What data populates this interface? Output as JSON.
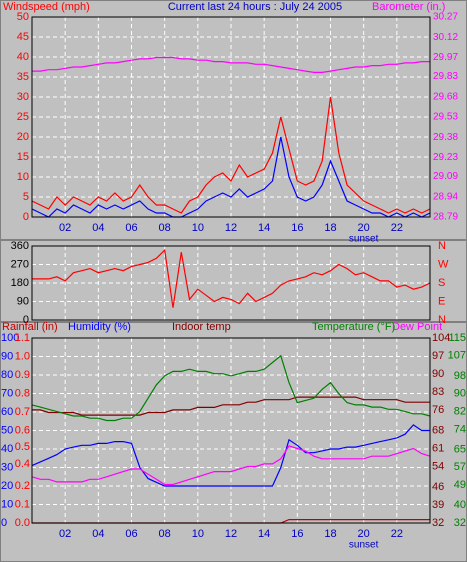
{
  "chart_data": [
    {
      "type": "line",
      "title": "Current last 24 hours : July 24 2005",
      "ylabel": "Windspeed (mph)",
      "y2label": "Barometer (in.)",
      "x": [
        0,
        0.5,
        1,
        1.5,
        2,
        2.5,
        3,
        3.5,
        4,
        4.5,
        5,
        5.5,
        6,
        6.5,
        7,
        7.5,
        8,
        8.5,
        9,
        9.5,
        10,
        10.5,
        11,
        11.5,
        12,
        12.5,
        13,
        13.5,
        14,
        14.5,
        15,
        15.5,
        16,
        16.5,
        17,
        17.5,
        18,
        18.5,
        19,
        19.5,
        20,
        20.5,
        21,
        21.5,
        22,
        22.5,
        23,
        23.5,
        24
      ],
      "xlim": [
        0,
        24
      ],
      "xticks": [
        {
          "value": 2,
          "label": "02"
        },
        {
          "value": 4,
          "label": "04"
        },
        {
          "value": 6,
          "label": "06"
        },
        {
          "value": 8,
          "label": "08"
        },
        {
          "value": 10,
          "label": "10"
        },
        {
          "value": 12,
          "label": "12"
        },
        {
          "value": 14,
          "label": "14"
        },
        {
          "value": 16,
          "label": "16"
        },
        {
          "value": 18,
          "label": "18"
        },
        {
          "value": 20,
          "label": "20"
        },
        {
          "value": 22,
          "label": "22"
        }
      ],
      "ylim": [
        0,
        50
      ],
      "yticks": [
        0,
        5,
        10,
        15,
        20,
        25,
        30,
        35,
        40,
        45,
        50
      ],
      "y2lim": [
        28.79,
        30.27
      ],
      "y2ticks": [
        28.79,
        28.94,
        29.09,
        29.23,
        29.38,
        29.53,
        29.68,
        29.83,
        29.97,
        30.12,
        30.27
      ],
      "grid": true,
      "annotations": [
        {
          "text": "sunset",
          "x": 20
        }
      ],
      "series": [
        {
          "color": "#ff0000",
          "values": [
            4,
            3,
            2,
            5,
            3,
            5,
            4,
            3,
            5,
            4,
            6,
            4,
            5,
            8,
            5,
            3,
            3,
            2,
            1,
            4,
            5,
            8,
            10,
            11,
            9,
            13,
            10,
            11,
            12,
            16,
            25,
            17,
            9,
            8,
            9,
            14,
            30,
            16,
            8,
            6,
            4,
            3,
            2,
            1,
            2,
            1,
            2,
            1,
            2
          ]
        },
        {
          "color": "#0000ff",
          "values": [
            2,
            1,
            0,
            2,
            1,
            3,
            2,
            1,
            3,
            2,
            3,
            2,
            3,
            4,
            2,
            1,
            1,
            0,
            0,
            1,
            2,
            4,
            5,
            6,
            5,
            7,
            5,
            6,
            7,
            9,
            20,
            10,
            5,
            4,
            5,
            8,
            14,
            9,
            4,
            3,
            2,
            1,
            1,
            0,
            1,
            0,
            1,
            0,
            1
          ]
        },
        {
          "color": "#ff00ff",
          "axis": "y2",
          "values": [
            29.87,
            29.87,
            29.88,
            29.88,
            29.89,
            29.9,
            29.9,
            29.91,
            29.92,
            29.93,
            29.93,
            29.94,
            29.95,
            29.96,
            29.96,
            29.97,
            29.97,
            29.97,
            29.96,
            29.96,
            29.95,
            29.95,
            29.94,
            29.94,
            29.93,
            29.93,
            29.93,
            29.92,
            29.92,
            29.91,
            29.9,
            29.89,
            29.88,
            29.87,
            29.86,
            29.86,
            29.87,
            29.88,
            29.89,
            29.9,
            29.9,
            29.91,
            29.91,
            29.92,
            29.92,
            29.93,
            29.93,
            29.94,
            29.94
          ]
        }
      ]
    },
    {
      "type": "line",
      "x": [
        0,
        0.5,
        1,
        1.5,
        2,
        2.5,
        3,
        3.5,
        4,
        4.5,
        5,
        5.5,
        6,
        6.5,
        7,
        7.5,
        8,
        8.5,
        9,
        9.5,
        10,
        10.5,
        11,
        11.5,
        12,
        12.5,
        13,
        13.5,
        14,
        14.5,
        15,
        15.5,
        16,
        16.5,
        17,
        17.5,
        18,
        18.5,
        19,
        19.5,
        20,
        20.5,
        21,
        21.5,
        22,
        22.5,
        23,
        23.5,
        24
      ],
      "xlim": [
        0,
        24
      ],
      "ylim": [
        0,
        360
      ],
      "yticks": [
        0,
        90,
        180,
        270,
        360
      ],
      "y2lim": [
        0,
        360
      ],
      "y2ticks": [
        {
          "value": 0,
          "label": "N"
        },
        {
          "value": 90,
          "label": "E"
        },
        {
          "value": 180,
          "label": "S"
        },
        {
          "value": 270,
          "label": "W"
        },
        {
          "value": 360,
          "label": "N"
        }
      ],
      "grid": true,
      "series": [
        {
          "color": "#ff0000",
          "values": [
            200,
            200,
            200,
            210,
            190,
            230,
            240,
            250,
            230,
            240,
            250,
            240,
            260,
            270,
            280,
            300,
            340,
            60,
            330,
            100,
            150,
            120,
            90,
            110,
            100,
            80,
            130,
            90,
            110,
            130,
            170,
            190,
            200,
            210,
            230,
            220,
            240,
            270,
            250,
            220,
            230,
            210,
            190,
            190,
            160,
            170,
            150,
            160,
            180
          ]
        }
      ]
    },
    {
      "type": "line",
      "x": [
        0,
        0.5,
        1,
        1.5,
        2,
        2.5,
        3,
        3.5,
        4,
        4.5,
        5,
        5.5,
        6,
        6.5,
        7,
        7.5,
        8,
        8.5,
        9,
        9.5,
        10,
        10.5,
        11,
        11.5,
        12,
        12.5,
        13,
        13.5,
        14,
        14.5,
        15,
        15.5,
        16,
        16.5,
        17,
        17.5,
        18,
        18.5,
        19,
        19.5,
        20,
        20.5,
        21,
        21.5,
        22,
        22.5,
        23,
        23.5,
        24
      ],
      "xlim": [
        0,
        24
      ],
      "xticks": [
        {
          "value": 2,
          "label": "02"
        },
        {
          "value": 4,
          "label": "04"
        },
        {
          "value": 6,
          "label": "06"
        },
        {
          "value": 8,
          "label": "08"
        },
        {
          "value": 10,
          "label": "10"
        },
        {
          "value": 12,
          "label": "12"
        },
        {
          "value": 14,
          "label": "14"
        },
        {
          "value": 16,
          "label": "16"
        },
        {
          "value": 18,
          "label": "18"
        },
        {
          "value": 20,
          "label": "20"
        },
        {
          "value": 22,
          "label": "22"
        }
      ],
      "ylim": [
        0,
        100
      ],
      "yticks": [
        0,
        10,
        20,
        30,
        40,
        50,
        60,
        70,
        80,
        90,
        100
      ],
      "y2lim": [
        0,
        1.1
      ],
      "y2ticks": [
        {
          "value": 0,
          "label": "0.0"
        },
        {
          "value": 0.11,
          "label": "0.1"
        },
        {
          "value": 0.22,
          "label": "0.2"
        },
        {
          "value": 0.35,
          "label": "0.4"
        },
        {
          "value": 0.45,
          "label": "0.5"
        },
        {
          "value": 0.55,
          "label": "0.6"
        },
        {
          "value": 0.66,
          "label": "0.7"
        },
        {
          "value": 0.77,
          "label": "0.8"
        },
        {
          "value": 0.88,
          "label": "0.9"
        },
        {
          "value": 0.99,
          "label": "1.0"
        },
        1.1
      ],
      "y3lim": [
        32,
        104
      ],
      "y3ticks": [
        32,
        39,
        46,
        54,
        61,
        68,
        76,
        83,
        90,
        97,
        104
      ],
      "y4lim": [
        32,
        115
      ],
      "y4ticks": [
        32,
        40,
        49,
        57,
        65,
        74,
        82,
        90,
        98,
        107,
        115
      ],
      "grid": true,
      "annotations": [
        {
          "text": "sunset",
          "x": 20
        }
      ],
      "series": [
        {
          "name": "Rainfall (in)",
          "color": "#c00000",
          "axis": "y2",
          "values": [
            0,
            0,
            0,
            0,
            0,
            0,
            0,
            0,
            0,
            0,
            0,
            0,
            0,
            0,
            0,
            0,
            0,
            0,
            0,
            0,
            0,
            0,
            0,
            0,
            0,
            0,
            0,
            0,
            0,
            0,
            0,
            0.02,
            0.02,
            0.02,
            0.02,
            0.02,
            0.02,
            0.02,
            0.02,
            0.02,
            0.02,
            0.02,
            0.02,
            0.02,
            0.02,
            0.02,
            0.02,
            0.02,
            0.02
          ]
        },
        {
          "name": "Humidity (%)",
          "color": "#0000ff",
          "values": [
            31,
            33,
            35,
            37,
            40,
            41,
            42,
            42,
            43,
            43,
            44,
            44,
            43,
            30,
            24,
            22,
            20,
            20,
            20,
            20,
            20,
            20,
            20,
            20,
            20,
            20,
            20,
            20,
            20,
            20,
            30,
            45,
            42,
            38,
            38,
            39,
            40,
            40,
            41,
            41,
            42,
            43,
            44,
            45,
            46,
            48,
            53,
            50,
            50
          ]
        },
        {
          "name": "Indoor temp",
          "color": "#800000",
          "axis": "y3",
          "values": [
            76,
            76,
            75,
            75,
            75,
            75,
            74,
            74,
            74,
            74,
            74,
            74,
            74,
            74,
            75,
            75,
            75,
            76,
            76,
            76,
            77,
            77,
            77,
            78,
            78,
            78,
            79,
            79,
            80,
            80,
            80,
            80,
            81,
            81,
            81,
            81,
            81,
            81,
            81,
            81,
            80,
            80,
            80,
            80,
            80,
            79,
            79,
            79,
            79
          ]
        },
        {
          "name": "Temperature (°F)",
          "color": "#008000",
          "axis": "y4",
          "values": [
            85,
            84,
            83,
            82,
            81,
            80,
            80,
            79,
            79,
            78,
            78,
            79,
            79,
            82,
            88,
            94,
            98,
            100,
            100,
            101,
            100,
            100,
            99,
            99,
            98,
            99,
            100,
            100,
            101,
            104,
            107,
            95,
            86,
            87,
            88,
            92,
            95,
            90,
            86,
            85,
            85,
            84,
            84,
            83,
            83,
            82,
            81,
            81,
            80
          ]
        },
        {
          "name": "Dew Point",
          "color": "#ff00ff",
          "axis": "y3",
          "values": [
            50,
            49,
            49,
            48,
            48,
            48,
            48,
            49,
            49,
            50,
            51,
            52,
            53,
            53,
            51,
            49,
            47,
            47,
            48,
            49,
            50,
            51,
            52,
            52,
            52,
            53,
            54,
            54,
            55,
            55,
            57,
            62,
            61,
            60,
            58,
            57,
            57,
            57,
            57,
            57,
            57,
            58,
            58,
            58,
            59,
            60,
            61,
            59,
            58
          ]
        }
      ]
    }
  ]
}
